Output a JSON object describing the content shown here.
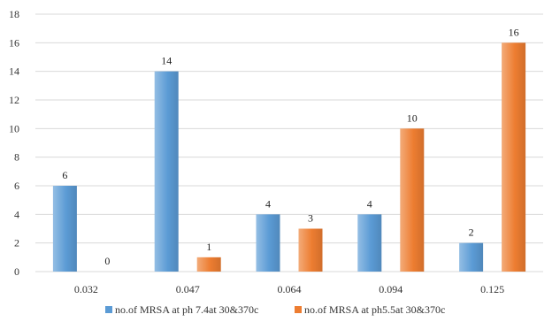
{
  "chart_data": {
    "type": "bar",
    "categories": [
      "0.032",
      "0.047",
      "0.064",
      "0.094",
      "0.125"
    ],
    "series": [
      {
        "name": "no.of MRSA at ph 7.4at 30&370c",
        "values": [
          6,
          14,
          4,
          4,
          2
        ],
        "color": "#5B9BD5"
      },
      {
        "name": "no.of MRSA at ph5.5at 30&370c",
        "values": [
          0,
          1,
          3,
          10,
          16
        ],
        "color": "#ED7D31"
      }
    ],
    "ylim": [
      0,
      18
    ],
    "yticks": [
      0,
      2,
      4,
      6,
      8,
      10,
      12,
      14,
      16,
      18
    ],
    "grid": true,
    "legend_position": "bottom",
    "data_labels": true,
    "gradient_bars": true
  }
}
